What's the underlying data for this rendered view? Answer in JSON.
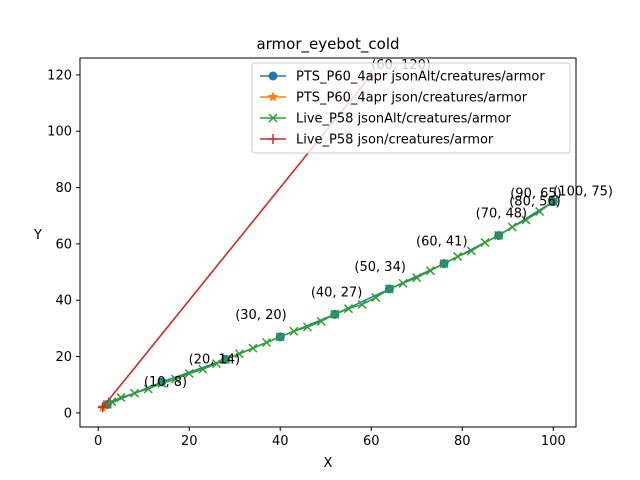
{
  "chart_data": {
    "type": "line",
    "title": "armor_eyebot_cold",
    "xlabel": "X",
    "ylabel": "Y",
    "xlim": [
      -4,
      105
    ],
    "ylim": [
      -5,
      126
    ],
    "xticks": [
      0,
      20,
      40,
      60,
      80,
      100
    ],
    "yticks": [
      0,
      20,
      40,
      60,
      80,
      100,
      120
    ],
    "grid": false,
    "legend_position": "top-right",
    "series": [
      {
        "name": "PTS_P60_4apr jsonAlt/creatures/armor",
        "color": "#1f77b4",
        "marker": "circle",
        "x": [
          2,
          14,
          28,
          40,
          52,
          64,
          76,
          88,
          100
        ],
        "y": [
          3,
          11,
          19,
          27,
          35,
          44,
          53,
          63,
          75
        ]
      },
      {
        "name": "PTS_P60_4apr json/creatures/armor",
        "color": "#ff7f0e",
        "marker": "star",
        "x": [
          1,
          60
        ],
        "y": [
          2,
          120
        ]
      },
      {
        "name": "Live_P58 jsonAlt/creatures/armor",
        "color": "#2ca02c",
        "marker": "x",
        "x": [
          2,
          3,
          5,
          8,
          11,
          14,
          17,
          20,
          23,
          26,
          28,
          31,
          34,
          37,
          40,
          43,
          46,
          49,
          52,
          55,
          58,
          61,
          64,
          67,
          70,
          73,
          76,
          79,
          82,
          85,
          88,
          91,
          94,
          97,
          100
        ],
        "y": [
          3,
          4,
          5.5,
          7,
          8.5,
          10.5,
          12,
          14,
          15.5,
          17.5,
          19,
          21,
          23,
          25,
          27,
          29,
          30.5,
          32.5,
          35,
          37,
          38.5,
          41,
          44,
          46,
          48,
          50.5,
          53,
          55.5,
          57.5,
          60.5,
          63,
          66,
          68.5,
          71.5,
          75
        ]
      },
      {
        "name": "Live_P58 json/creatures/armor",
        "color": "#d62728",
        "marker": "plus",
        "x": [
          1,
          60
        ],
        "y": [
          2,
          120
        ]
      }
    ],
    "annotations": [
      {
        "text": "(10, 8)",
        "x": 14,
        "y": 11
      },
      {
        "text": "(20, 14)",
        "x": 28,
        "y": 19
      },
      {
        "text": "(30, 20)",
        "x": 40,
        "y": 27
      },
      {
        "text": "(40, 27)",
        "x": 52,
        "y": 35
      },
      {
        "text": "(50, 34)",
        "x": 64,
        "y": 44
      },
      {
        "text": "(60, 41)",
        "x": 76,
        "y": 53
      },
      {
        "text": "(70, 48)",
        "x": 88,
        "y": 63
      },
      {
        "text": "(80, 56)",
        "x": 100,
        "y": 75
      },
      {
        "text": "(90, 65)",
        "x": 100,
        "y": 75
      },
      {
        "text": "(100, 75)",
        "x": 100,
        "y": 75
      },
      {
        "text": "(60, 120)",
        "x": 60,
        "y": 120
      }
    ]
  }
}
